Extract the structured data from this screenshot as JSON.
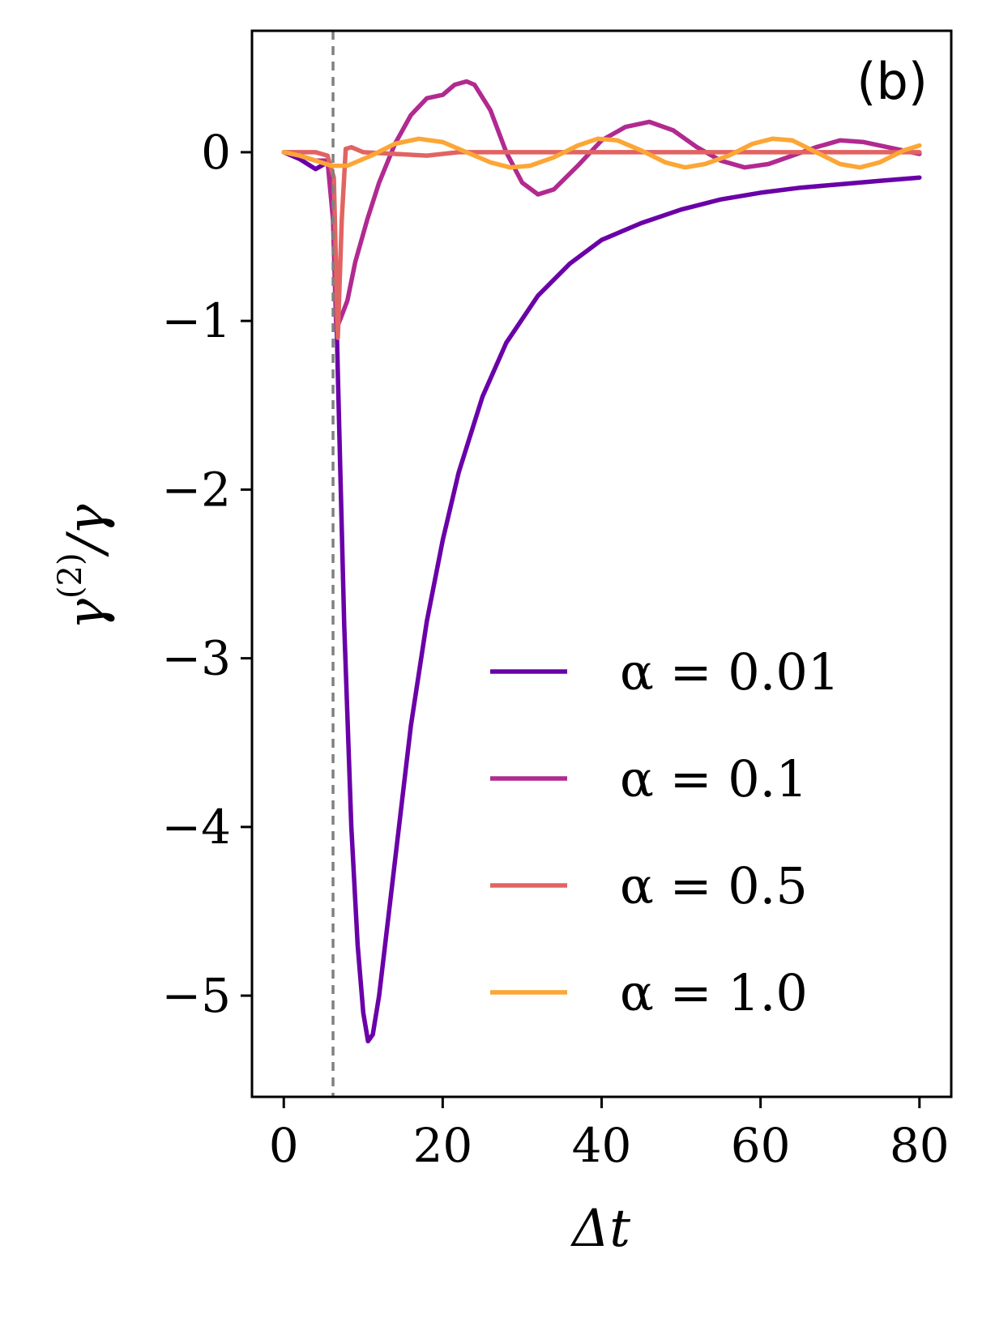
{
  "chart_data": {
    "type": "line",
    "panel_label": "(b)",
    "xlabel": "Δt",
    "ylabel_main": "γ",
    "ylabel_sup": "(2)",
    "ylabel_tail": "/γ",
    "xlim": [
      -4,
      84
    ],
    "ylim": [
      -5.6,
      0.72
    ],
    "xticks": [
      0,
      20,
      40,
      60,
      80
    ],
    "xtick_labels": [
      "0",
      "20",
      "40",
      "60",
      "80"
    ],
    "yticks": [
      0,
      -1,
      -2,
      -3,
      -4,
      -5
    ],
    "ytick_labels": [
      "0",
      "−1",
      "−2",
      "−3",
      "−4",
      "−5"
    ],
    "vline_x": 6.2,
    "grid": false,
    "legend_position": "lower-right",
    "series": [
      {
        "name": "α = 0.01",
        "color": "#6a00a8",
        "points": [
          [
            0,
            0
          ],
          [
            2,
            -0.04
          ],
          [
            4,
            -0.1
          ],
          [
            5.5,
            -0.06
          ],
          [
            6.3,
            -0.3
          ],
          [
            6.8,
            -1.3
          ],
          [
            7.6,
            -2.8
          ],
          [
            8.5,
            -4.0
          ],
          [
            9.3,
            -4.7
          ],
          [
            10,
            -5.1
          ],
          [
            10.6,
            -5.27
          ],
          [
            11.2,
            -5.23
          ],
          [
            12,
            -5.0
          ],
          [
            13,
            -4.6
          ],
          [
            14.5,
            -4.0
          ],
          [
            16,
            -3.4
          ],
          [
            18,
            -2.78
          ],
          [
            20,
            -2.3
          ],
          [
            22,
            -1.9
          ],
          [
            25,
            -1.45
          ],
          [
            28,
            -1.13
          ],
          [
            32,
            -0.85
          ],
          [
            36,
            -0.66
          ],
          [
            40,
            -0.52
          ],
          [
            45,
            -0.42
          ],
          [
            50,
            -0.34
          ],
          [
            55,
            -0.28
          ],
          [
            60,
            -0.24
          ],
          [
            65,
            -0.21
          ],
          [
            70,
            -0.19
          ],
          [
            75,
            -0.17
          ],
          [
            80,
            -0.15
          ]
        ]
      },
      {
        "name": "α = 0.1",
        "color": "#b12a90",
        "points": [
          [
            0,
            0
          ],
          [
            2,
            -0.02
          ],
          [
            4,
            -0.05
          ],
          [
            5.5,
            -0.05
          ],
          [
            6.2,
            -0.4
          ],
          [
            6.6,
            -1.05
          ],
          [
            7.2,
            -0.98
          ],
          [
            8,
            -0.88
          ],
          [
            9,
            -0.65
          ],
          [
            10.5,
            -0.4
          ],
          [
            12,
            -0.18
          ],
          [
            14,
            0.05
          ],
          [
            16,
            0.22
          ],
          [
            18,
            0.32
          ],
          [
            20,
            0.34
          ],
          [
            21.5,
            0.4
          ],
          [
            23,
            0.42
          ],
          [
            24,
            0.4
          ],
          [
            26,
            0.25
          ],
          [
            28,
            0.0
          ],
          [
            30,
            -0.18
          ],
          [
            32,
            -0.25
          ],
          [
            34,
            -0.22
          ],
          [
            37,
            -0.08
          ],
          [
            40,
            0.07
          ],
          [
            43,
            0.15
          ],
          [
            46,
            0.18
          ],
          [
            49,
            0.13
          ],
          [
            52,
            0.03
          ],
          [
            55,
            -0.05
          ],
          [
            58,
            -0.09
          ],
          [
            61,
            -0.07
          ],
          [
            64,
            -0.02
          ],
          [
            67,
            0.03
          ],
          [
            70,
            0.07
          ],
          [
            73,
            0.06
          ],
          [
            76,
            0.03
          ],
          [
            80,
            -0.01
          ]
        ]
      },
      {
        "name": "α = 0.5",
        "color": "#e16462",
        "points": [
          [
            0,
            0
          ],
          [
            4,
            0
          ],
          [
            5.5,
            -0.02
          ],
          [
            6.3,
            -0.15
          ],
          [
            6.8,
            -1.1
          ],
          [
            7.3,
            -0.4
          ],
          [
            7.8,
            0.02
          ],
          [
            8.5,
            0.03
          ],
          [
            10,
            0.0
          ],
          [
            14,
            -0.01
          ],
          [
            18,
            -0.02
          ],
          [
            22,
            0.0
          ],
          [
            30,
            0.0
          ],
          [
            40,
            0.0
          ],
          [
            50,
            0.0
          ],
          [
            60,
            0.0
          ],
          [
            70,
            0.0
          ],
          [
            80,
            0.0
          ]
        ]
      },
      {
        "name": "α = 1.0",
        "color": "#fca636",
        "points": [
          [
            0,
            0
          ],
          [
            2,
            -0.02
          ],
          [
            4,
            -0.05
          ],
          [
            6,
            -0.08
          ],
          [
            8,
            -0.08
          ],
          [
            11,
            -0.02
          ],
          [
            14,
            0.05
          ],
          [
            17,
            0.08
          ],
          [
            20,
            0.06
          ],
          [
            23,
            0.0
          ],
          [
            26,
            -0.06
          ],
          [
            28.5,
            -0.09
          ],
          [
            31,
            -0.08
          ],
          [
            34,
            -0.03
          ],
          [
            37,
            0.04
          ],
          [
            39.5,
            0.08
          ],
          [
            42,
            0.07
          ],
          [
            45,
            0.01
          ],
          [
            48,
            -0.06
          ],
          [
            50.5,
            -0.09
          ],
          [
            53,
            -0.07
          ],
          [
            56,
            -0.02
          ],
          [
            59,
            0.05
          ],
          [
            61.5,
            0.08
          ],
          [
            64,
            0.07
          ],
          [
            67,
            0.0
          ],
          [
            70,
            -0.07
          ],
          [
            72.5,
            -0.09
          ],
          [
            75,
            -0.06
          ],
          [
            78,
            0.01
          ],
          [
            80,
            0.04
          ]
        ]
      }
    ]
  }
}
